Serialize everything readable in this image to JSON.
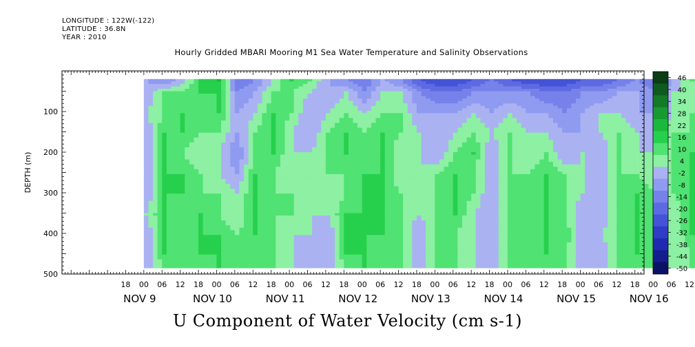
{
  "header": {
    "longitude": "LONGITUDE : 122W(-122)",
    "latitude": "LATITUDE : 36.8N",
    "year": "YEAR : 2010"
  },
  "chart_data": {
    "type": "heatmap",
    "title": "Hourly Gridded MBARI Mooring M1 Sea Water Temperature and Salinity Observations",
    "subtitle": "U Component of Water Velocity (cm s-1)",
    "ylabel": "DEPTH (m)",
    "xlabel": "",
    "ylim": [
      500,
      0
    ],
    "yticks": [
      100,
      200,
      300,
      400,
      500
    ],
    "x_hour_ticks": [
      "18",
      "00",
      "06",
      "12",
      "18",
      "00",
      "06",
      "12",
      "18",
      "00",
      "06",
      "12",
      "18",
      "00",
      "06",
      "12",
      "18",
      "00",
      "06",
      "12",
      "18",
      "00",
      "06",
      "12",
      "18",
      "00",
      "06",
      "12",
      "18",
      "00",
      "06",
      "12"
    ],
    "x_day_labels": [
      "NOV  9",
      "NOV 10",
      "NOV 11",
      "NOV 12",
      "NOV 13",
      "NOV 14",
      "NOV 15",
      "NOV 16"
    ],
    "colorbar": {
      "labels": [
        "46",
        "40",
        "34",
        "28",
        "22",
        "16",
        "10",
        "4",
        "-2",
        "-8",
        "-14",
        "-20",
        "-26",
        "-32",
        "-38",
        "-44",
        "-50"
      ],
      "colors": [
        "#0a3d14",
        "#0f5a1f",
        "#137a28",
        "#179a32",
        "#1cb83d",
        "#26d04c",
        "#50e272",
        "#8df0a3",
        "#aab2f2",
        "#8f9bf0",
        "#7682ea",
        "#5d6ae2",
        "#4553d6",
        "#2f3cc6",
        "#1f2ab0",
        "#141d8e",
        "#0a1266"
      ]
    },
    "data_grid": {
      "x": [
        "NOV 9 00",
        "NOV 9 06",
        "NOV 9 12",
        "NOV 9 18",
        "NOV 10 00",
        "NOV 10 06",
        "NOV 10 12",
        "NOV 10 18",
        "NOV 11 00",
        "NOV 11 06",
        "NOV 11 12",
        "NOV 11 18",
        "NOV 12 00",
        "NOV 12 06",
        "NOV 12 12",
        "NOV 12 18",
        "NOV 13 00",
        "NOV 13 06",
        "NOV 13 12",
        "NOV 13 18",
        "NOV 14 00",
        "NOV 14 06",
        "NOV 14 12",
        "NOV 14 18",
        "NOV 15 00",
        "NOV 15 06",
        "NOV 15 12",
        "NOV 15 18",
        "NOV 16 00",
        "NOV 16 06",
        "NOV 16 12"
      ],
      "depth": [
        20,
        50,
        100,
        150,
        200,
        250,
        300,
        350,
        400,
        450,
        480
      ],
      "values": [
        [
          -8,
          -14,
          -4,
          10,
          16,
          -20,
          -14,
          -2,
          10,
          4,
          -8,
          -14,
          -20,
          -8,
          -14,
          -26,
          -32,
          -32,
          -26,
          -20,
          -26,
          -32,
          -32,
          -32,
          -26,
          -26,
          -20,
          -14,
          -20,
          -8,
          4
        ],
        [
          -8,
          4,
          4,
          10,
          10,
          -14,
          -8,
          4,
          4,
          -2,
          -8,
          -2,
          -14,
          -2,
          -2,
          -14,
          -20,
          -20,
          -14,
          -14,
          -14,
          -14,
          -20,
          -20,
          -14,
          -14,
          -8,
          -8,
          -14,
          -2,
          -2
        ],
        [
          -2,
          4,
          10,
          4,
          10,
          -8,
          -2,
          10,
          4,
          -8,
          -2,
          4,
          -2,
          4,
          4,
          -8,
          -8,
          -8,
          -2,
          -8,
          -2,
          -8,
          -8,
          -14,
          -8,
          -2,
          -2,
          -8,
          -8,
          -2,
          4
        ],
        [
          -8,
          10,
          10,
          4,
          4,
          -8,
          4,
          10,
          -2,
          -8,
          4,
          10,
          4,
          10,
          4,
          -2,
          -8,
          -2,
          4,
          -2,
          4,
          -2,
          -2,
          -8,
          -8,
          -2,
          4,
          -2,
          -8,
          4,
          4
        ],
        [
          -8,
          10,
          4,
          -2,
          -2,
          -14,
          4,
          10,
          -2,
          -2,
          4,
          10,
          4,
          10,
          -2,
          -2,
          -8,
          4,
          10,
          -8,
          4,
          -2,
          4,
          -8,
          -2,
          -8,
          4,
          -2,
          -2,
          4,
          10
        ],
        [
          -8,
          10,
          10,
          4,
          -2,
          -8,
          10,
          4,
          -2,
          -2,
          4,
          4,
          10,
          10,
          -2,
          -2,
          4,
          10,
          4,
          -8,
          4,
          4,
          10,
          4,
          -2,
          -8,
          4,
          4,
          -2,
          4,
          10
        ],
        [
          -8,
          10,
          10,
          4,
          4,
          -2,
          10,
          4,
          4,
          -2,
          -2,
          4,
          10,
          10,
          4,
          -2,
          4,
          10,
          4,
          -8,
          4,
          4,
          10,
          4,
          -2,
          -8,
          4,
          10,
          4,
          4,
          10
        ],
        [
          -2,
          10,
          4,
          10,
          4,
          -2,
          10,
          4,
          4,
          -2,
          -2,
          10,
          10,
          10,
          4,
          -2,
          4,
          10,
          -2,
          -8,
          4,
          4,
          10,
          4,
          -8,
          -8,
          4,
          10,
          4,
          -2,
          10
        ],
        [
          -8,
          10,
          4,
          10,
          10,
          4,
          10,
          4,
          -2,
          -2,
          -8,
          10,
          10,
          10,
          4,
          -8,
          4,
          4,
          -2,
          -8,
          4,
          4,
          10,
          10,
          -8,
          -2,
          4,
          10,
          4,
          -2,
          10
        ],
        [
          -8,
          10,
          4,
          10,
          10,
          4,
          4,
          4,
          -2,
          -8,
          -8,
          10,
          10,
          4,
          4,
          -8,
          4,
          4,
          -2,
          -8,
          4,
          4,
          10,
          4,
          -8,
          -8,
          4,
          10,
          4,
          -2,
          4
        ],
        [
          -8,
          4,
          4,
          4,
          10,
          4,
          4,
          4,
          -2,
          -8,
          -8,
          4,
          10,
          4,
          4,
          -8,
          4,
          4,
          -2,
          -8,
          4,
          4,
          4,
          4,
          -8,
          -8,
          4,
          4,
          4,
          -2,
          4
        ]
      ]
    }
  }
}
